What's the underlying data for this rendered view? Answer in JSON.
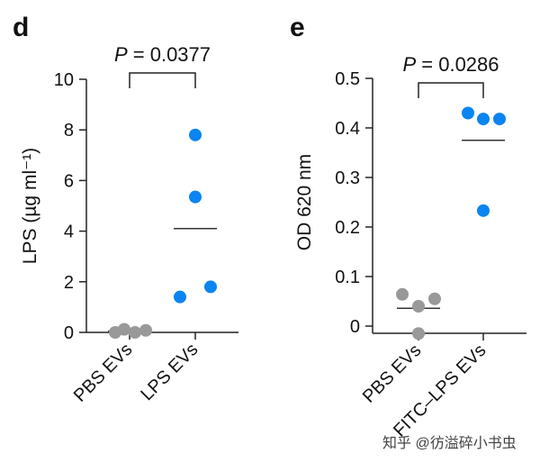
{
  "chart_data": [
    {
      "panel": "d",
      "type": "scatter",
      "ylabel": "LPS (µg ml⁻¹)",
      "ylim": [
        0,
        10
      ],
      "yticks": [
        "0",
        "2",
        "4",
        "6",
        "8",
        "10"
      ],
      "categories": [
        "PBS EVs",
        "LPS EVs"
      ],
      "pvalue": "P = 0.0377",
      "series": [
        {
          "name": "PBS EVs",
          "color": "#999999",
          "values": [
            0.0,
            0.12,
            0.0,
            0.08
          ],
          "mean": 0.05
        },
        {
          "name": "LPS EVs",
          "color": "#0a84f0",
          "values": [
            7.8,
            5.35,
            1.4,
            1.8
          ],
          "mean": 4.1
        }
      ]
    },
    {
      "panel": "e",
      "type": "scatter",
      "ylabel": "OD 620 nm",
      "ylim": [
        0,
        0.5
      ],
      "yticks": [
        "0",
        "0.1",
        "0.2",
        "0.3",
        "0.4",
        "0.5"
      ],
      "categories": [
        "PBS EVs",
        "FITC–LPS EVs"
      ],
      "pvalue": "P = 0.0286",
      "series": [
        {
          "name": "PBS EVs",
          "color": "#999999",
          "values": [
            0.064,
            0.04,
            0.055,
            -0.015
          ],
          "mean": 0.036
        },
        {
          "name": "FITC–LPS EVs",
          "color": "#0a84f0",
          "values": [
            0.43,
            0.418,
            0.418,
            0.233
          ],
          "mean": 0.375
        }
      ]
    }
  ],
  "watermark": "知乎 @彷溢碎小书虫"
}
